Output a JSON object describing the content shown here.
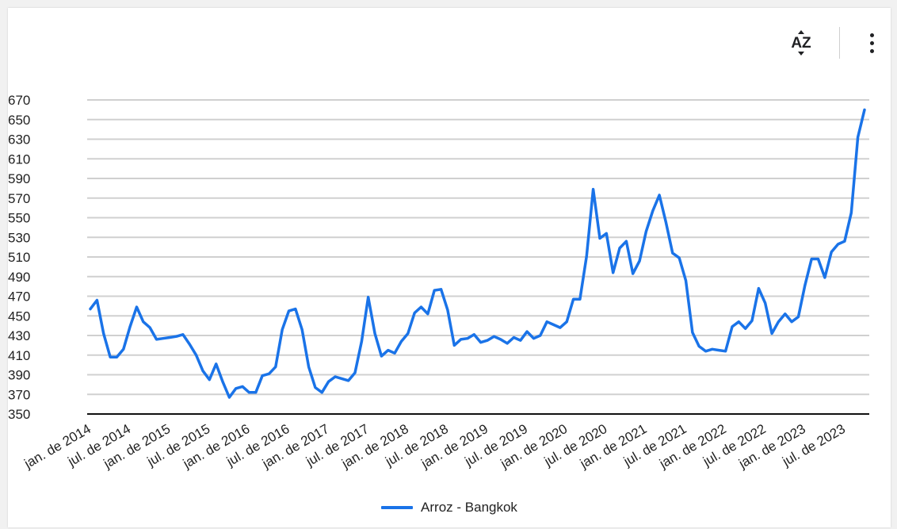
{
  "toolbar": {
    "sort_icon": "sort-alphabetical-icon",
    "sort_label": "AZ",
    "menu_icon": "more-vert-icon"
  },
  "chart_data": {
    "type": "line",
    "title": "",
    "xlabel": "",
    "ylabel": "",
    "ylim": [
      350,
      670
    ],
    "yticks": [
      350,
      370,
      390,
      410,
      430,
      450,
      470,
      490,
      510,
      530,
      550,
      570,
      590,
      610,
      630,
      650,
      670
    ],
    "grid": true,
    "legend_position": "bottom",
    "x_tick_labels": [
      "jan. de 2014",
      "jul. de 2014",
      "jan. de 2015",
      "jul. de 2015",
      "jan. de 2016",
      "jul. de 2016",
      "jan. de 2017",
      "jul. de 2017",
      "jan. de 2018",
      "jul. de 2018",
      "jan. de 2019",
      "jul. de 2019",
      "jan. de 2020",
      "jul. de 2020",
      "jan. de 2021",
      "jul. de 2021",
      "jan. de 2022",
      "jul. de 2022",
      "jan. de 2023",
      "jul. de 2023"
    ],
    "x_start": "2014-01",
    "series": [
      {
        "name": "Arroz - Bangkok",
        "color": "#1a73e8",
        "values": [
          457,
          466,
          432,
          408,
          408,
          416,
          439,
          459,
          444,
          438,
          426,
          427,
          428,
          429,
          431,
          421,
          410,
          394,
          385,
          401,
          383,
          367,
          376,
          378,
          372,
          372,
          389,
          391,
          398,
          436,
          455,
          457,
          436,
          398,
          377,
          372,
          383,
          388,
          386,
          384,
          392,
          424,
          469,
          432,
          409,
          415,
          412,
          424,
          432,
          453,
          459,
          452,
          476,
          477,
          456,
          420,
          426,
          427,
          431,
          423,
          425,
          429,
          426,
          422,
          428,
          425,
          434,
          427,
          430,
          444,
          441,
          438,
          444,
          467,
          467,
          511,
          579,
          529,
          534,
          494,
          519,
          526,
          493,
          506,
          536,
          557,
          573,
          545,
          514,
          509,
          486,
          433,
          419,
          414,
          416,
          415,
          414,
          439,
          444,
          437,
          445,
          478,
          463,
          432,
          444,
          452,
          444,
          449,
          481,
          508,
          508,
          489,
          515,
          523,
          526,
          555,
          632,
          660
        ]
      }
    ]
  }
}
